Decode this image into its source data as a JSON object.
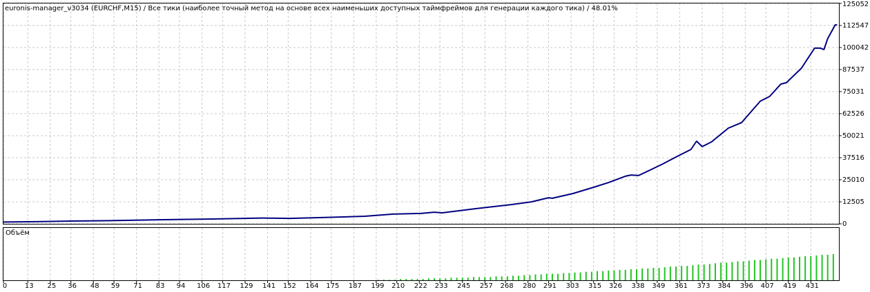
{
  "chart_data": [
    {
      "type": "line",
      "title": "euronis-manager_v3034 (EURCHF,M15) / Все тики (наиболее точный метод на основе всех наименьших доступных таймфреймов для генерации каждого тика) / 48.01%",
      "x": [
        0,
        18,
        39,
        57,
        83,
        109,
        138,
        153,
        175,
        193,
        208,
        223,
        230,
        234,
        252,
        271,
        282,
        291,
        293,
        304,
        315,
        323,
        332,
        335,
        339,
        346,
        352,
        359,
        367,
        370,
        373,
        378,
        387,
        394,
        404,
        409,
        415,
        418,
        426,
        433,
        436,
        438,
        440,
        444,
        445
      ],
      "values": [
        1000,
        1200,
        1600,
        1800,
        2300,
        2700,
        3300,
        3100,
        3700,
        4300,
        5500,
        5900,
        6600,
        6200,
        8600,
        10900,
        12500,
        14800,
        14500,
        17200,
        20700,
        23400,
        27000,
        27700,
        27400,
        30900,
        34000,
        37900,
        42200,
        46900,
        43800,
        46500,
        54300,
        57400,
        69600,
        72300,
        79300,
        80100,
        88300,
        99700,
        99700,
        98900,
        105100,
        112900,
        112900
      ],
      "color": "#000080",
      "xlim": [
        0,
        446
      ],
      "xticks": [
        0,
        13,
        25,
        36,
        48,
        59,
        71,
        83,
        94,
        106,
        117,
        129,
        141,
        152,
        164,
        175,
        187,
        199,
        210,
        222,
        233,
        245,
        257,
        268,
        280,
        291,
        303,
        315,
        326,
        338,
        349,
        361,
        373,
        384,
        396,
        407,
        419,
        431
      ],
      "ylim": [
        0,
        125052
      ],
      "yticks": [
        0,
        12505,
        25010,
        37516,
        50021,
        62526,
        75031,
        87537,
        100042,
        112547,
        125052
      ],
      "grid": true
    },
    {
      "type": "bar",
      "title": "Объём",
      "x": [
        200,
        203,
        206,
        209,
        212,
        215,
        218,
        221,
        224,
        227,
        230,
        233,
        236,
        239,
        242,
        245,
        248,
        251,
        254,
        257,
        260,
        263,
        266,
        269,
        272,
        275,
        278,
        281,
        284,
        287,
        290,
        293,
        296,
        299,
        302,
        305,
        308,
        311,
        314,
        317,
        320,
        323,
        326,
        329,
        332,
        335,
        338,
        341,
        344,
        347,
        350,
        353,
        356,
        359,
        362,
        365,
        368,
        371,
        374,
        377,
        380,
        383,
        386,
        389,
        392,
        395,
        398,
        401,
        404,
        407,
        410,
        413,
        416,
        419,
        422,
        425,
        428,
        431,
        434,
        437,
        440,
        443
      ],
      "values": [
        0.01,
        0.01,
        0.01,
        0.01,
        0.02,
        0.02,
        0.02,
        0.02,
        0.02,
        0.03,
        0.03,
        0.03,
        0.03,
        0.04,
        0.04,
        0.04,
        0.04,
        0.05,
        0.05,
        0.05,
        0.05,
        0.06,
        0.06,
        0.06,
        0.07,
        0.07,
        0.08,
        0.08,
        0.09,
        0.09,
        0.1,
        0.1,
        0.1,
        0.11,
        0.11,
        0.12,
        0.12,
        0.13,
        0.13,
        0.14,
        0.14,
        0.15,
        0.15,
        0.16,
        0.16,
        0.17,
        0.17,
        0.18,
        0.18,
        0.19,
        0.19,
        0.2,
        0.21,
        0.21,
        0.22,
        0.22,
        0.23,
        0.24,
        0.24,
        0.25,
        0.26,
        0.27,
        0.27,
        0.28,
        0.29,
        0.29,
        0.3,
        0.31,
        0.31,
        0.32,
        0.33,
        0.33,
        0.34,
        0.35,
        0.35,
        0.36,
        0.37,
        0.37,
        0.38,
        0.39,
        0.39,
        0.4
      ],
      "color": "#22c322",
      "ylim": [
        0,
        0.8
      ]
    }
  ]
}
